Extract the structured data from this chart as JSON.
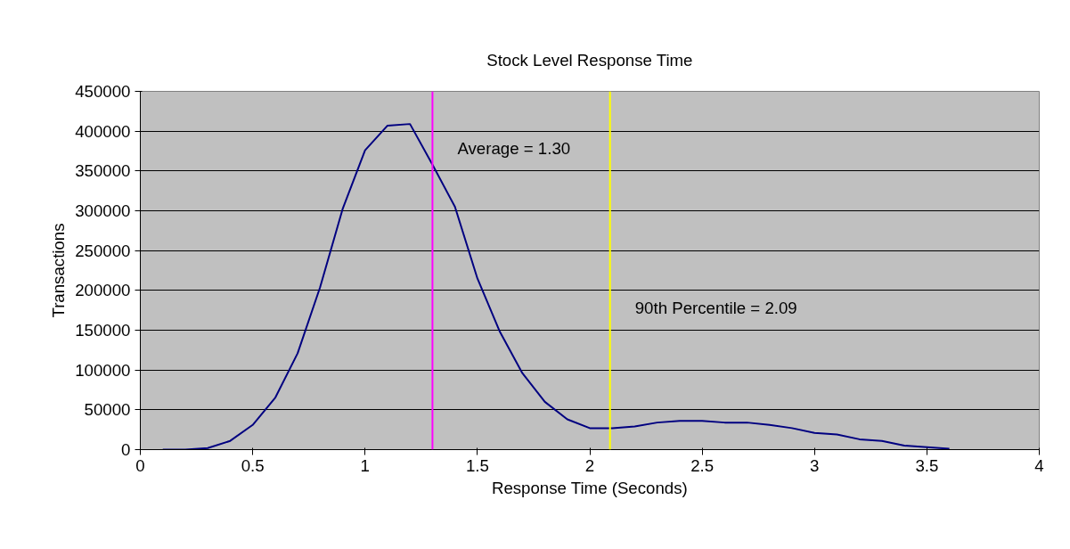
{
  "chart_data": {
    "type": "line",
    "title": "Stock Level Response Time",
    "xlabel": "Response Time (Seconds)",
    "ylabel": "Transactions",
    "x": [
      0.1,
      0.2,
      0.3,
      0.4,
      0.5,
      0.6,
      0.7,
      0.8,
      0.9,
      1.0,
      1.1,
      1.2,
      1.3,
      1.4,
      1.5,
      1.6,
      1.7,
      1.8,
      1.9,
      2.0,
      2.1,
      2.2,
      2.3,
      2.4,
      2.5,
      2.6,
      2.7,
      2.8,
      2.9,
      3.0,
      3.1,
      3.2,
      3.3,
      3.4,
      3.5,
      3.6
    ],
    "series": [
      {
        "color": "#000080",
        "values": [
          0,
          0,
          2000,
          11000,
          31000,
          65000,
          121000,
          204000,
          302000,
          376000,
          407000,
          409000,
          358000,
          305000,
          215000,
          148000,
          96000,
          60000,
          38000,
          27000,
          27000,
          29000,
          34000,
          36000,
          36000,
          34000,
          34000,
          31000,
          27000,
          21000,
          19000,
          13000,
          11000,
          5000,
          3000,
          1000
        ]
      }
    ],
    "xlim": [
      0,
      4
    ],
    "xticks": [
      0,
      0.5,
      1,
      1.5,
      2,
      2.5,
      3,
      3.5,
      4
    ],
    "ylim": [
      0,
      450000
    ],
    "yticks": [
      0,
      50000,
      100000,
      150000,
      200000,
      250000,
      300000,
      350000,
      400000,
      450000
    ],
    "ref_lines": [
      {
        "axis": "x",
        "value": 1.3,
        "color": "#ff00ff"
      },
      {
        "axis": "x",
        "value": 2.09,
        "color": "#ffff00"
      }
    ],
    "annotations": [
      {
        "text": "Average = 1.30",
        "x": 1.3,
        "y": 400000
      },
      {
        "text": "90th Percentile = 2.09",
        "x": 2.09,
        "y": 200000
      }
    ],
    "grid": "y",
    "marker": "none",
    "line_style": "solid"
  }
}
